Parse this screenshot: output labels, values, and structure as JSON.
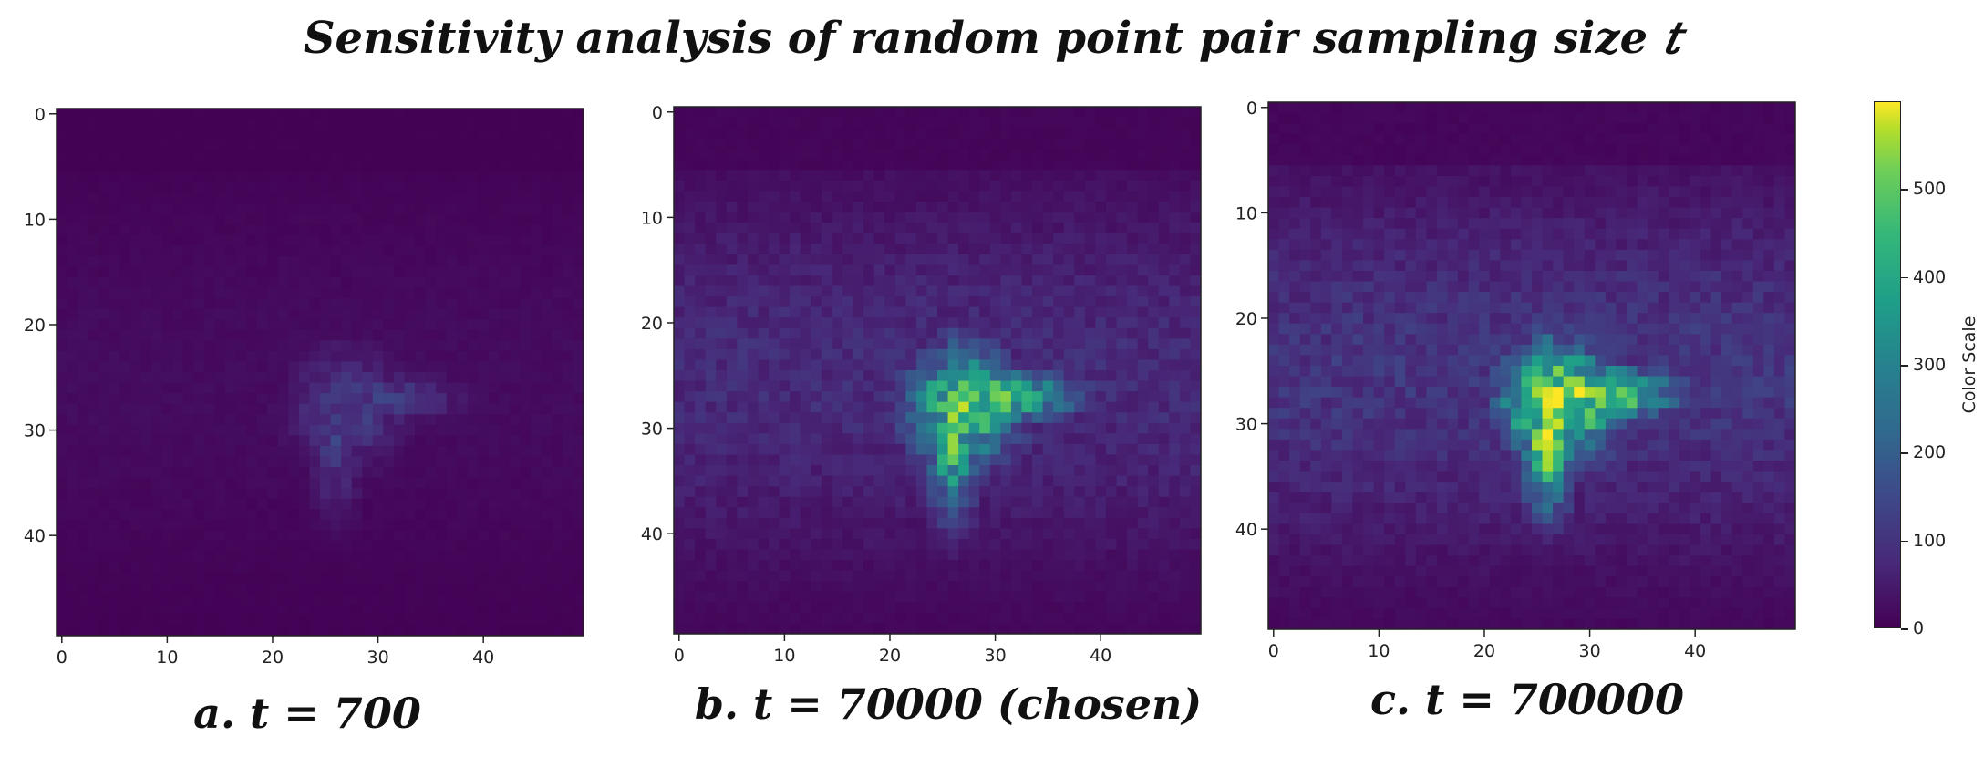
{
  "title": "Sensitivity analysis of random point pair sampling size 𝑡",
  "chart_data": [
    {
      "type": "heatmap",
      "caption": "a. t = 700",
      "grid": [
        50,
        50
      ],
      "xticks": [
        0,
        10,
        20,
        30,
        40
      ],
      "yticks": [
        0,
        10,
        20,
        30,
        40
      ],
      "xlim": [
        -0.5,
        49.5
      ],
      "ylim": [
        49.5,
        -0.5
      ],
      "value_range": [
        0,
        120
      ],
      "colormap": "viridis"
    },
    {
      "type": "heatmap",
      "caption": "b. t = 70000 (chosen)",
      "grid": [
        50,
        50
      ],
      "xticks": [
        0,
        10,
        20,
        30,
        40
      ],
      "yticks": [
        0,
        10,
        20,
        30,
        40
      ],
      "xlim": [
        -0.5,
        49.5
      ],
      "ylim": [
        49.5,
        -0.5
      ],
      "value_range": [
        0,
        480
      ],
      "colormap": "viridis"
    },
    {
      "type": "heatmap",
      "caption": "c. t = 700000",
      "grid": [
        50,
        50
      ],
      "xticks": [
        0,
        10,
        20,
        30,
        40
      ],
      "yticks": [
        0,
        10,
        20,
        30,
        40
      ],
      "xlim": [
        -0.5,
        49.5
      ],
      "ylim": [
        49.5,
        -0.5
      ],
      "value_range": [
        0,
        600
      ],
      "colormap": "viridis"
    }
  ],
  "colorbar": {
    "label": "Color Scale",
    "ticks": [
      0,
      100,
      200,
      300,
      400,
      500
    ],
    "range": [
      0,
      600
    ]
  }
}
